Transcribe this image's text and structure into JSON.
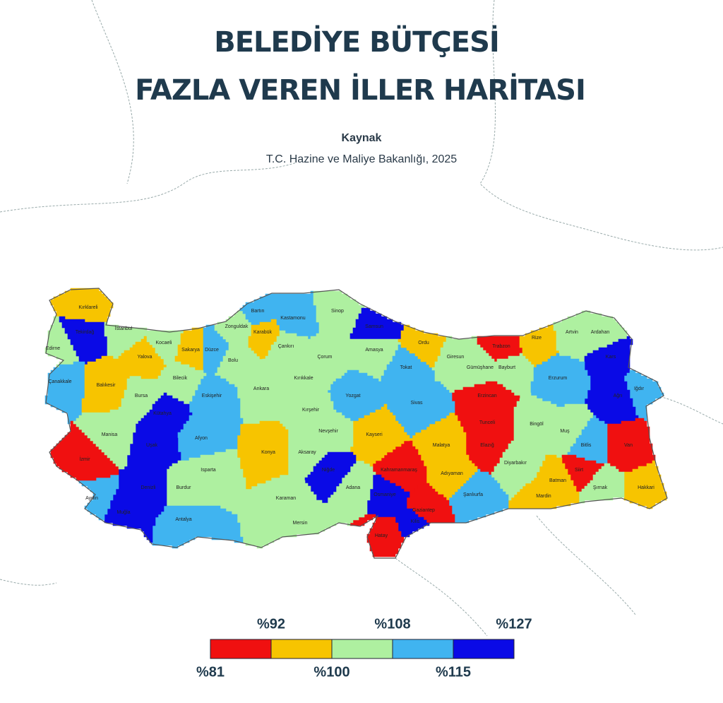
{
  "header": {
    "title_lines": [
      "BELEDİYE BÜTÇESİ",
      "FAZLA VEREN İLLER HARİTASI"
    ],
    "source_label": "Kaynak",
    "source": "T.C. Hazine ve Maliye Bakanlığı, 2025"
  },
  "provinces": [
    {
      "name": "Kırklareli",
      "color": "#f7c400"
    },
    {
      "name": "Edirne",
      "color": "#aef0a0"
    },
    {
      "name": "Tekirdağ",
      "color": "#0a0ae6"
    },
    {
      "name": "İstanbul",
      "color": "#aef0a0"
    },
    {
      "name": "Çanakkale",
      "color": "#40b4f0"
    },
    {
      "name": "Balıkesir",
      "color": "#f7c400"
    },
    {
      "name": "Bursa",
      "color": "#aef0a0"
    },
    {
      "name": "Yalova",
      "color": "#f7c400"
    },
    {
      "name": "Kocaeli",
      "color": "#aef0a0"
    },
    {
      "name": "Sakarya",
      "color": "#f7c400"
    },
    {
      "name": "Düzce",
      "color": "#40b4f0"
    },
    {
      "name": "Bolu",
      "color": "#aef0a0"
    },
    {
      "name": "Zonguldak",
      "color": "#aef0a0"
    },
    {
      "name": "Bartın",
      "color": "#40b4f0"
    },
    {
      "name": "Karabük",
      "color": "#f7c400"
    },
    {
      "name": "Kastamonu",
      "color": "#40b4f0"
    },
    {
      "name": "Sinop",
      "color": "#aef0a0"
    },
    {
      "name": "Samsun",
      "color": "#0a0ae6"
    },
    {
      "name": "Çankırı",
      "color": "#aef0a0"
    },
    {
      "name": "Çorum",
      "color": "#aef0a0"
    },
    {
      "name": "Amasya",
      "color": "#aef0a0"
    },
    {
      "name": "Tokat",
      "color": "#40b4f0"
    },
    {
      "name": "Ordu",
      "color": "#f7c400"
    },
    {
      "name": "Giresun",
      "color": "#aef0a0"
    },
    {
      "name": "Trabzon",
      "color": "#f01010"
    },
    {
      "name": "Rize",
      "color": "#f7c400"
    },
    {
      "name": "Artvin",
      "color": "#aef0a0"
    },
    {
      "name": "Ardahan",
      "color": "#aef0a0"
    },
    {
      "name": "Kars",
      "color": "#0a0ae6"
    },
    {
      "name": "Iğdır",
      "color": "#40b4f0"
    },
    {
      "name": "Ağrı",
      "color": "#0a0ae6"
    },
    {
      "name": "Gümüşhane",
      "color": "#aef0a0"
    },
    {
      "name": "Bayburt",
      "color": "#aef0a0"
    },
    {
      "name": "Erzurum",
      "color": "#40b4f0"
    },
    {
      "name": "Erzincan",
      "color": "#f01010"
    },
    {
      "name": "Tunceli",
      "color": "#f01010"
    },
    {
      "name": "Elazığ",
      "color": "#f01010"
    },
    {
      "name": "Bingöl",
      "color": "#aef0a0"
    },
    {
      "name": "Muş",
      "color": "#aef0a0"
    },
    {
      "name": "Van",
      "color": "#f01010"
    },
    {
      "name": "Bitlis",
      "color": "#40b4f0"
    },
    {
      "name": "Siirt",
      "color": "#f01010"
    },
    {
      "name": "Hakkari",
      "color": "#f7c400"
    },
    {
      "name": "Şırnak",
      "color": "#aef0a0"
    },
    {
      "name": "Batman",
      "color": "#f7c400"
    },
    {
      "name": "Mardin",
      "color": "#f7c400"
    },
    {
      "name": "Diyarbakır",
      "color": "#aef0a0"
    },
    {
      "name": "Şanlıurfa",
      "color": "#40b4f0"
    },
    {
      "name": "Adıyaman",
      "color": "#f7c400"
    },
    {
      "name": "Malatya",
      "color": "#f7c400"
    },
    {
      "name": "Kahramanmaraş",
      "color": "#f01010"
    },
    {
      "name": "Gaziantep",
      "color": "#f01010"
    },
    {
      "name": "Kilis",
      "color": "#0a0ae6"
    },
    {
      "name": "Osmaniye",
      "color": "#0a0ae6"
    },
    {
      "name": "Hatay",
      "color": "#f01010"
    },
    {
      "name": "Adana",
      "color": "#aef0a0"
    },
    {
      "name": "Sivas",
      "color": "#40b4f0"
    },
    {
      "name": "Yozgat",
      "color": "#40b4f0"
    },
    {
      "name": "Kayseri",
      "color": "#f7c400"
    },
    {
      "name": "Kırıkkale",
      "color": "#aef0a0"
    },
    {
      "name": "Ankara",
      "color": "#aef0a0"
    },
    {
      "name": "Kırşehir",
      "color": "#aef0a0"
    },
    {
      "name": "Nevşehir",
      "color": "#aef0a0"
    },
    {
      "name": "Aksaray",
      "color": "#aef0a0"
    },
    {
      "name": "Niğde",
      "color": "#0a0ae6"
    },
    {
      "name": "Karaman",
      "color": "#aef0a0"
    },
    {
      "name": "Mersin",
      "color": "#aef0a0"
    },
    {
      "name": "Konya",
      "color": "#f7c400"
    },
    {
      "name": "Eskişehir",
      "color": "#40b4f0"
    },
    {
      "name": "Bilecik",
      "color": "#aef0a0"
    },
    {
      "name": "Kütahya",
      "color": "#0a0ae6"
    },
    {
      "name": "Afyon",
      "color": "#40b4f0"
    },
    {
      "name": "Uşak",
      "color": "#0a0ae6"
    },
    {
      "name": "Isparta",
      "color": "#aef0a0"
    },
    {
      "name": "Burdur",
      "color": "#aef0a0"
    },
    {
      "name": "Antalya",
      "color": "#40b4f0"
    },
    {
      "name": "Denizli",
      "color": "#0a0ae6"
    },
    {
      "name": "Muğla",
      "color": "#0a0ae6"
    },
    {
      "name": "Aydın",
      "color": "#40b4f0"
    },
    {
      "name": "İzmir",
      "color": "#f01010"
    },
    {
      "name": "Manisa",
      "color": "#aef0a0"
    }
  ],
  "legend": {
    "labels": [
      "%81",
      "%92",
      "%100",
      "%108",
      "%115",
      "%127"
    ],
    "colors": [
      "#f01010",
      "#f7c400",
      "#aef0a0",
      "#40b4f0",
      "#0a0ae6"
    ]
  }
}
